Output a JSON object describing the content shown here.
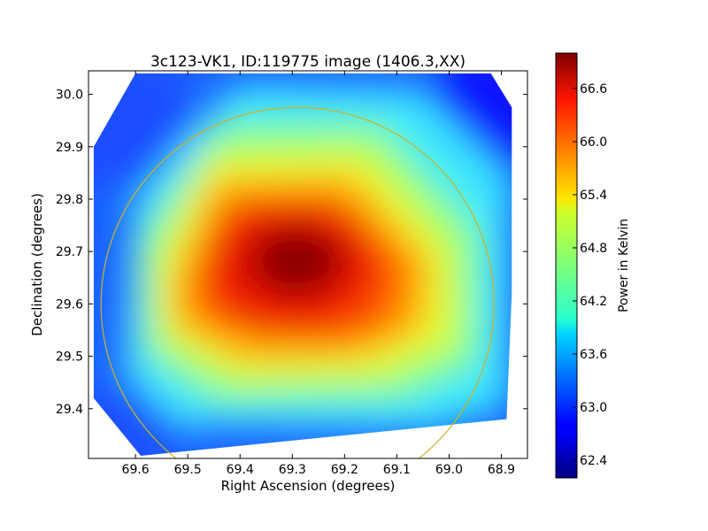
{
  "chart_data": {
    "type": "heatmap",
    "title": "3c123-VK1, ID:119775 image (1406.3,XX)",
    "xlabel": "Right Ascension (degrees)",
    "ylabel": "Declination (degrees)",
    "xlim": [
      69.69,
      68.85
    ],
    "ylim": [
      29.305,
      30.045
    ],
    "x_inverted": true,
    "x_ticks": [
      "69.6",
      "69.5",
      "69.4",
      "69.3",
      "69.2",
      "69.1",
      "69.0",
      "68.9"
    ],
    "x_tick_values": [
      69.6,
      69.5,
      69.4,
      69.3,
      69.2,
      69.1,
      69.0,
      68.9
    ],
    "y_ticks": [
      "29.4",
      "29.5",
      "29.6",
      "29.7",
      "29.8",
      "29.9",
      "30.0"
    ],
    "y_tick_values": [
      29.4,
      29.5,
      29.6,
      29.7,
      29.8,
      29.9,
      30.0
    ],
    "colorbar": {
      "label": "Power in Kelvin",
      "min": 62.2,
      "max": 67.0,
      "ticks": [
        "62.4",
        "63.0",
        "63.6",
        "64.2",
        "64.8",
        "65.4",
        "66.0",
        "66.6"
      ],
      "tick_values": [
        62.4,
        63.0,
        63.6,
        64.2,
        64.8,
        65.4,
        66.0,
        66.6
      ],
      "colormap": "jet"
    },
    "peak": {
      "ra": 69.28,
      "dec": 29.675,
      "value": 67.0
    },
    "data_footprint_corners": [
      {
        "ra": 69.6,
        "dec": 30.04
      },
      {
        "ra": 68.92,
        "dec": 30.04
      },
      {
        "ra": 68.88,
        "dec": 29.975
      },
      {
        "ra": 68.88,
        "dec": 29.62
      },
      {
        "ra": 68.89,
        "dec": 29.38
      },
      {
        "ra": 69.59,
        "dec": 29.31
      },
      {
        "ra": 69.68,
        "dec": 29.42
      },
      {
        "ra": 69.68,
        "dec": 29.9
      }
    ],
    "circle": {
      "center_ra": 69.29,
      "center_dec": 29.6,
      "radius_dec": 0.375,
      "color": "#c8b428"
    },
    "grid": false,
    "legend": "none"
  }
}
